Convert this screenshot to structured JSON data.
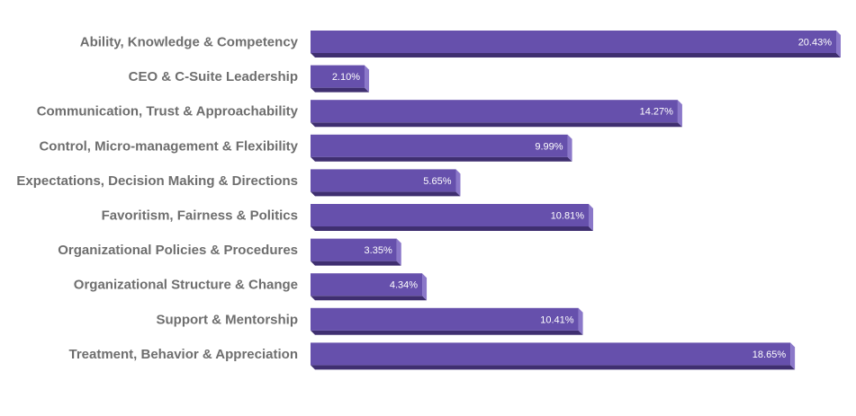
{
  "chart_data": {
    "type": "bar",
    "orientation": "horizontal",
    "categories": [
      "Ability, Knowledge & Competency",
      "CEO & C-Suite Leadership",
      "Communication, Trust & Approachability",
      "Control, Micro-management & Flexibility",
      "Expectations, Decision Making & Directions",
      "Favoritism, Fairness & Politics",
      "Organizational Policies & Procedures",
      "Organizational Structure & Change",
      "Support & Mentorship",
      "Treatment, Behavior & Appreciation"
    ],
    "values": [
      20.43,
      2.1,
      14.27,
      9.99,
      5.65,
      10.81,
      3.35,
      4.34,
      10.41,
      18.65
    ],
    "value_labels": [
      "20.43%",
      "2.10%",
      "14.27%",
      "9.99%",
      "5.65%",
      "10.81%",
      "3.35%",
      "4.34%",
      "10.41%",
      "18.65%"
    ],
    "title": "",
    "xlabel": "",
    "ylabel": "",
    "xlim": [
      0,
      20.43
    ],
    "grid": false,
    "legend": "none",
    "colors": {
      "bar_front": "#6650ac",
      "bar_side": "#8b78c9",
      "bar_bottom": "#3f2f70",
      "category_text": "#6e6e6e",
      "value_text": "#ffffff"
    }
  }
}
